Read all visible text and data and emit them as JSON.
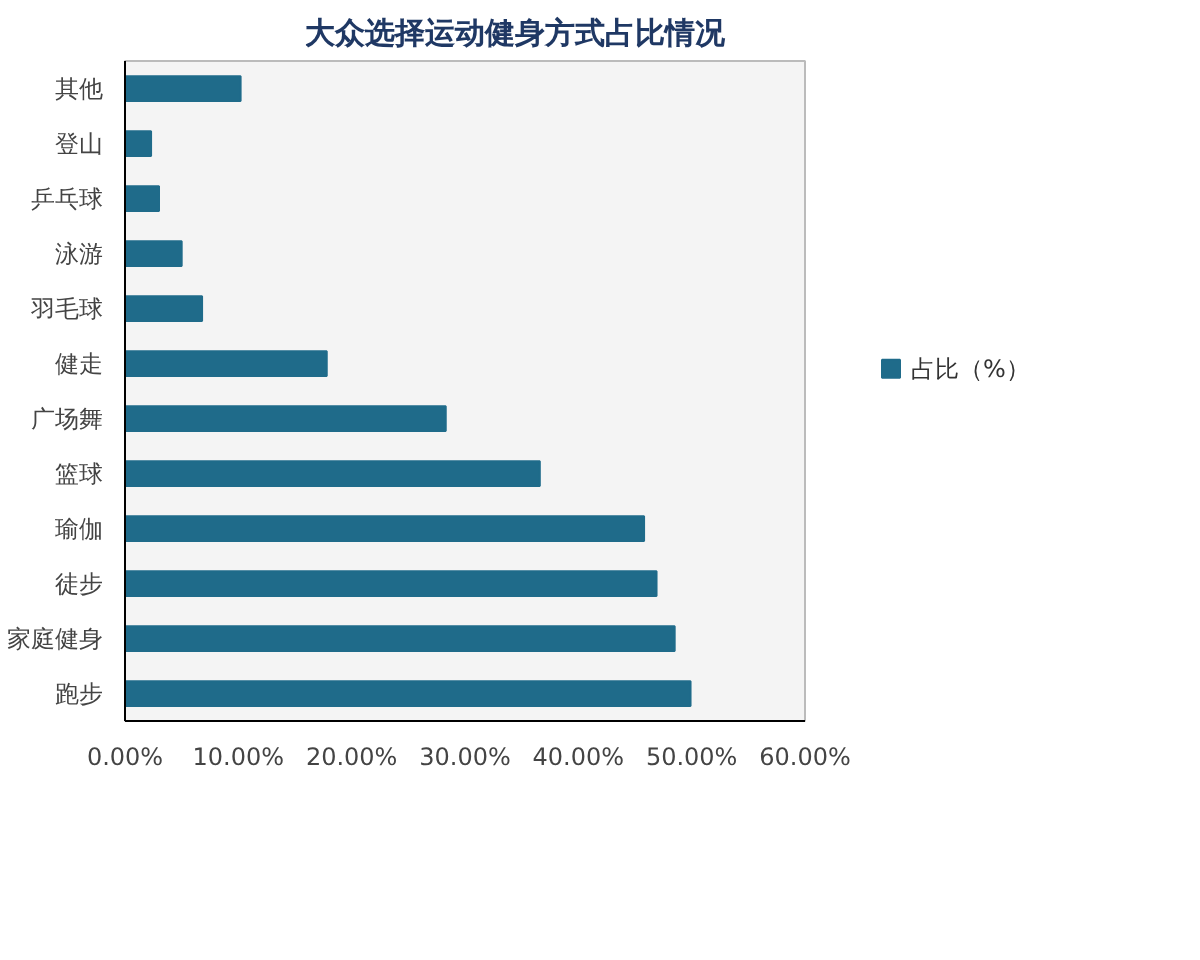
{
  "chart_data": {
    "type": "bar",
    "orientation": "horizontal",
    "title": "大众选择运动健身方式占比情况",
    "categories": [
      "其他",
      "登山",
      "乒乓球",
      "泳游",
      "羽毛球",
      "健走",
      "广场舞",
      "篮球",
      "瑜伽",
      "徒步",
      "家庭健身",
      "跑步"
    ],
    "series": [
      {
        "name": "占比（%）",
        "color": "#1f6b8a",
        "values": [
          10.2,
          2.3,
          3.0,
          5.0,
          6.8,
          17.8,
          28.3,
          36.6,
          45.8,
          46.9,
          48.5,
          49.9
        ]
      }
    ],
    "xlim": [
      0,
      60
    ],
    "xticks": [
      {
        "value": 0,
        "label": "0.00%"
      },
      {
        "value": 10,
        "label": "10.00%"
      },
      {
        "value": 20,
        "label": "20.00%"
      },
      {
        "value": 30,
        "label": "30.00%"
      },
      {
        "value": 40,
        "label": "40.00%"
      },
      {
        "value": 50,
        "label": "50.00%"
      },
      {
        "value": 60,
        "label": "60.00%"
      }
    ],
    "grid": false,
    "legend": "right"
  }
}
